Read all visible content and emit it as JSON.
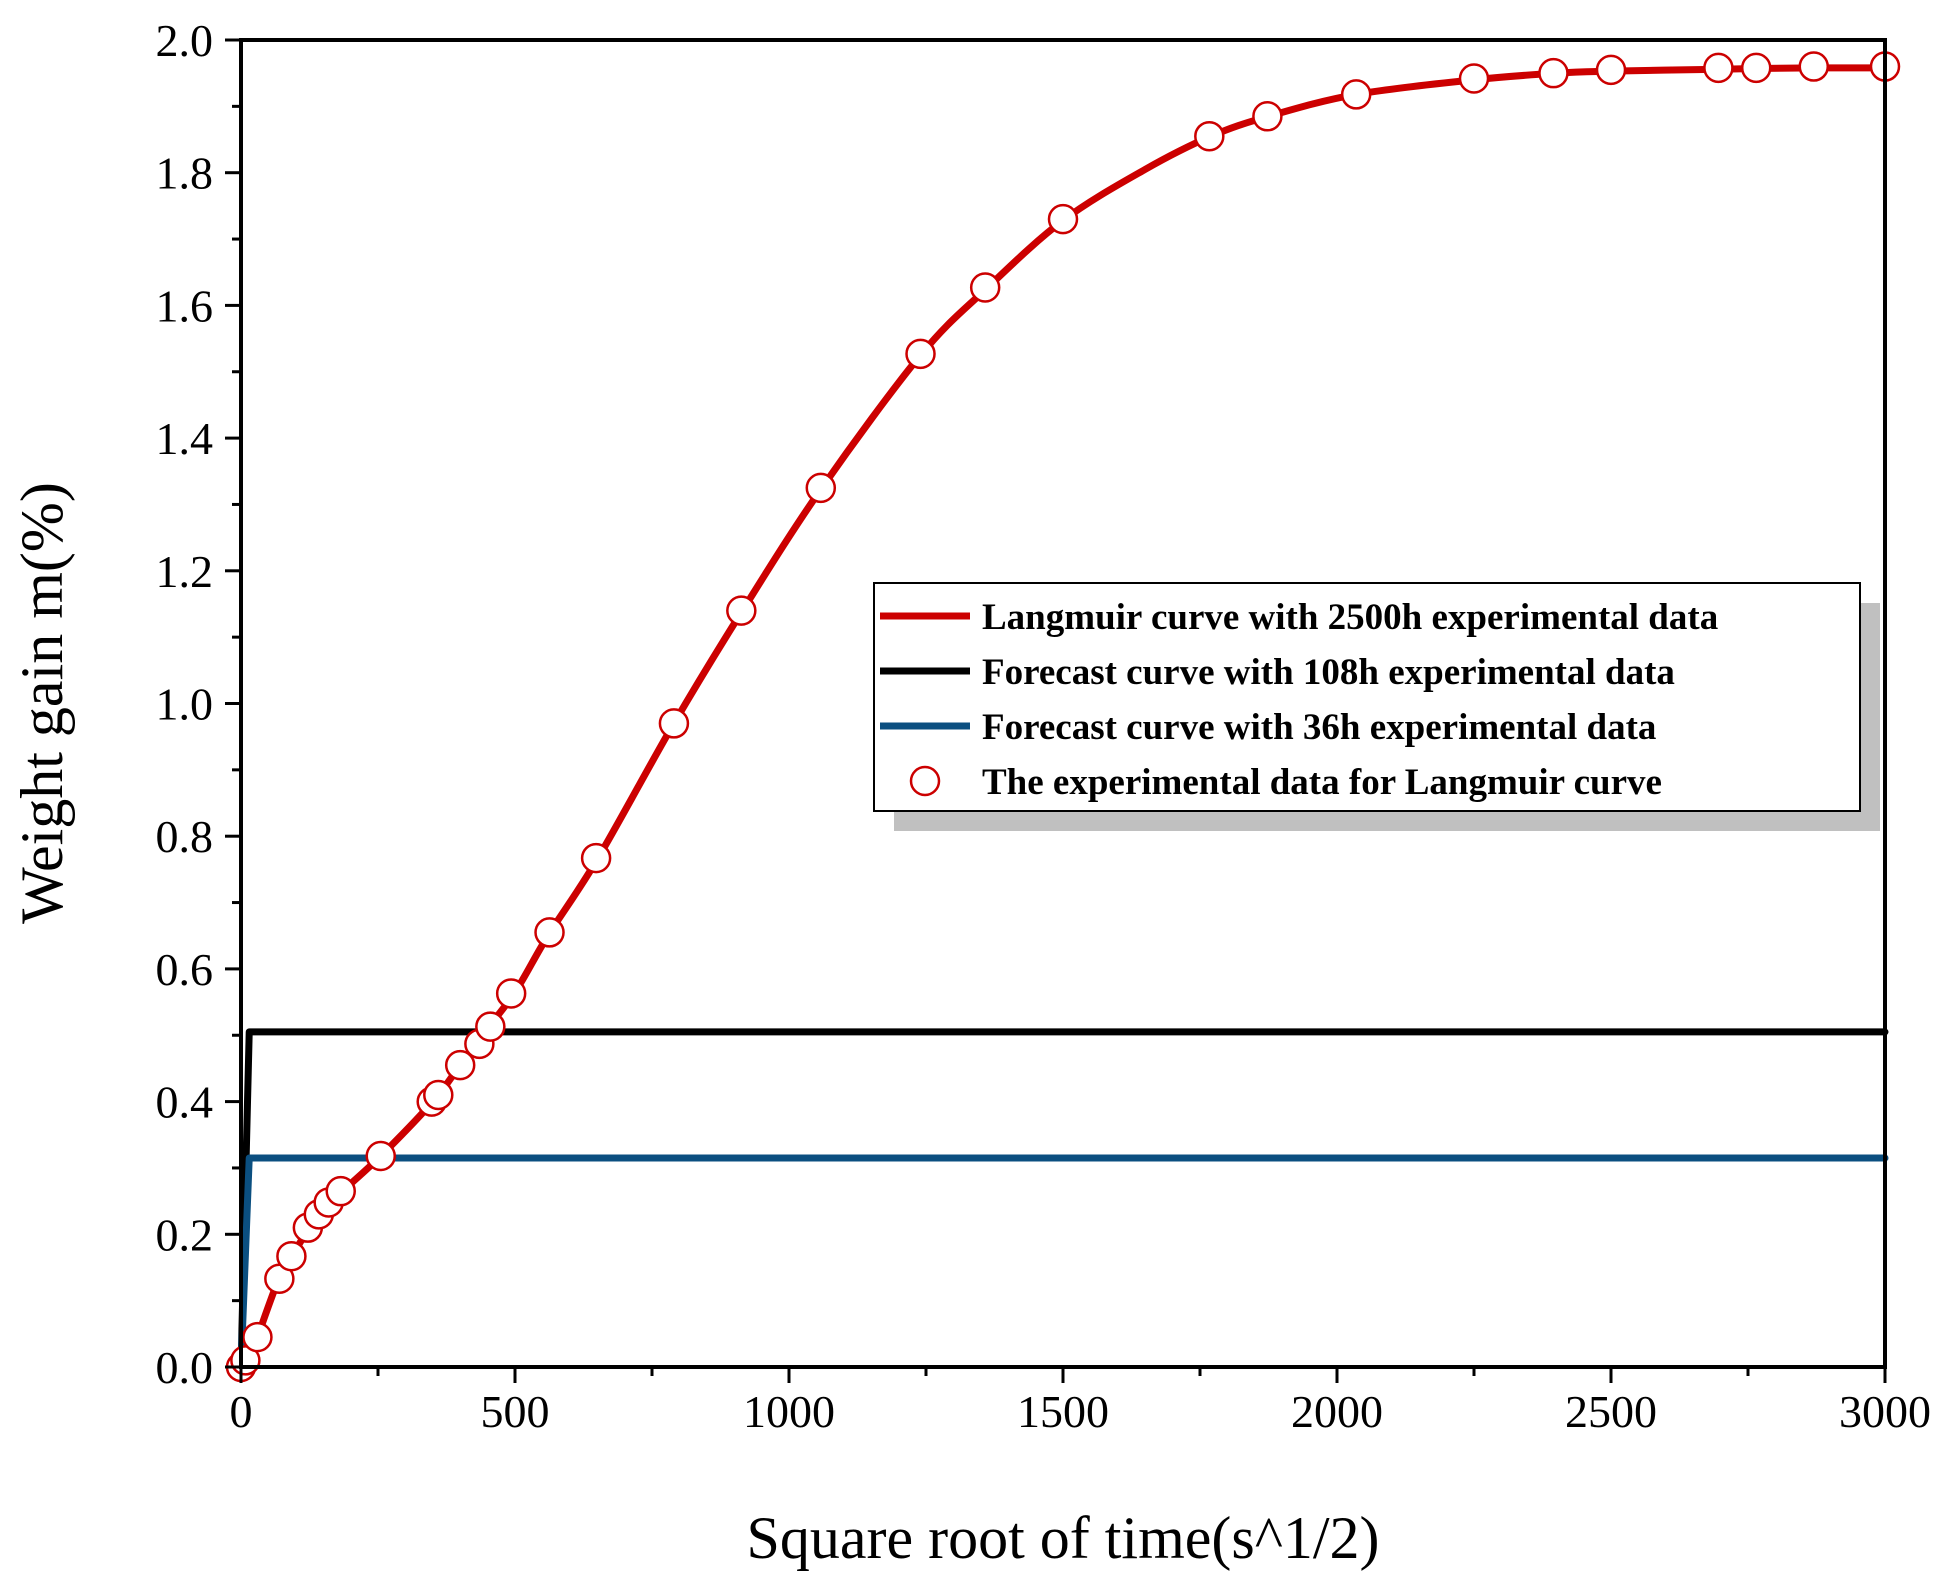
{
  "chart_data": {
    "type": "line",
    "title": "",
    "xlabel": "Square root of time(s^1/2)",
    "ylabel": "Weight gain m(%)",
    "xlim": [
      0,
      3000
    ],
    "ylim": [
      0.0,
      2.0
    ],
    "x_ticks": [
      0,
      500,
      1000,
      1500,
      2000,
      2500,
      3000
    ],
    "x_tick_labels": [
      "0",
      "500",
      "1000",
      "1500",
      "2000",
      "2500",
      "3000"
    ],
    "y_ticks": [
      0.0,
      0.2,
      0.4,
      0.6,
      0.8,
      1.0,
      1.2,
      1.4,
      1.6,
      1.8,
      2.0
    ],
    "y_tick_labels": [
      "0.0",
      "0.2",
      "0.4",
      "0.6",
      "0.8",
      "1.0",
      "1.2",
      "1.4",
      "1.6",
      "1.8",
      "2.0"
    ],
    "grid": false,
    "legend_position": "center-right",
    "series": [
      {
        "name": "Langmuir curve with 2500h experimental data",
        "style": "line",
        "color": "#cc0000",
        "x": [
          0,
          15,
          30,
          70,
          95,
          125,
          145,
          165,
          185,
          255,
          350,
          400,
          440,
          500,
          560,
          650,
          790,
          915,
          1060,
          1240,
          1360,
          1500,
          1650,
          1770,
          1875,
          2035,
          2250,
          2400,
          2500,
          2700,
          2765,
          2870,
          3000
        ],
        "y": [
          0.0,
          0.01,
          0.045,
          0.135,
          0.17,
          0.21,
          0.23,
          0.25,
          0.265,
          0.318,
          0.4,
          0.455,
          0.5,
          0.565,
          0.65,
          0.765,
          0.97,
          1.14,
          1.325,
          1.525,
          1.625,
          1.728,
          1.805,
          1.855,
          1.885,
          1.918,
          1.94,
          1.95,
          1.953,
          1.956,
          1.957,
          1.958,
          1.958
        ]
      },
      {
        "name": "Forecast curve with 108h experimental data",
        "style": "line",
        "color": "#000000",
        "x": [
          0,
          15,
          3000
        ],
        "y": [
          0.0,
          0.505,
          0.505
        ]
      },
      {
        "name": "Forecast curve with 36h experimental data",
        "style": "line",
        "color": "#0b4f80",
        "x": [
          0,
          15,
          3000
        ],
        "y": [
          0.0,
          0.315,
          0.315
        ]
      },
      {
        "name": "The experimental data for Langmuir curve",
        "style": "markers",
        "marker": "open-circle",
        "color": "#cc0000",
        "x": [
          0,
          8,
          30,
          70,
          92,
          122,
          142,
          160,
          182,
          255,
          348,
          360,
          400,
          435,
          455,
          493,
          563,
          648,
          790,
          913,
          1058,
          1240,
          1358,
          1500,
          1767,
          1873,
          2035,
          2250,
          2395,
          2500,
          2696,
          2765,
          2870,
          3000
        ],
        "y": [
          0.0,
          0.01,
          0.045,
          0.133,
          0.167,
          0.21,
          0.23,
          0.248,
          0.265,
          0.318,
          0.4,
          0.41,
          0.455,
          0.487,
          0.513,
          0.563,
          0.655,
          0.767,
          0.97,
          1.14,
          1.325,
          1.527,
          1.627,
          1.73,
          1.855,
          1.885,
          1.918,
          1.942,
          1.95,
          1.955,
          1.958,
          1.958,
          1.96,
          1.96
        ]
      }
    ]
  }
}
